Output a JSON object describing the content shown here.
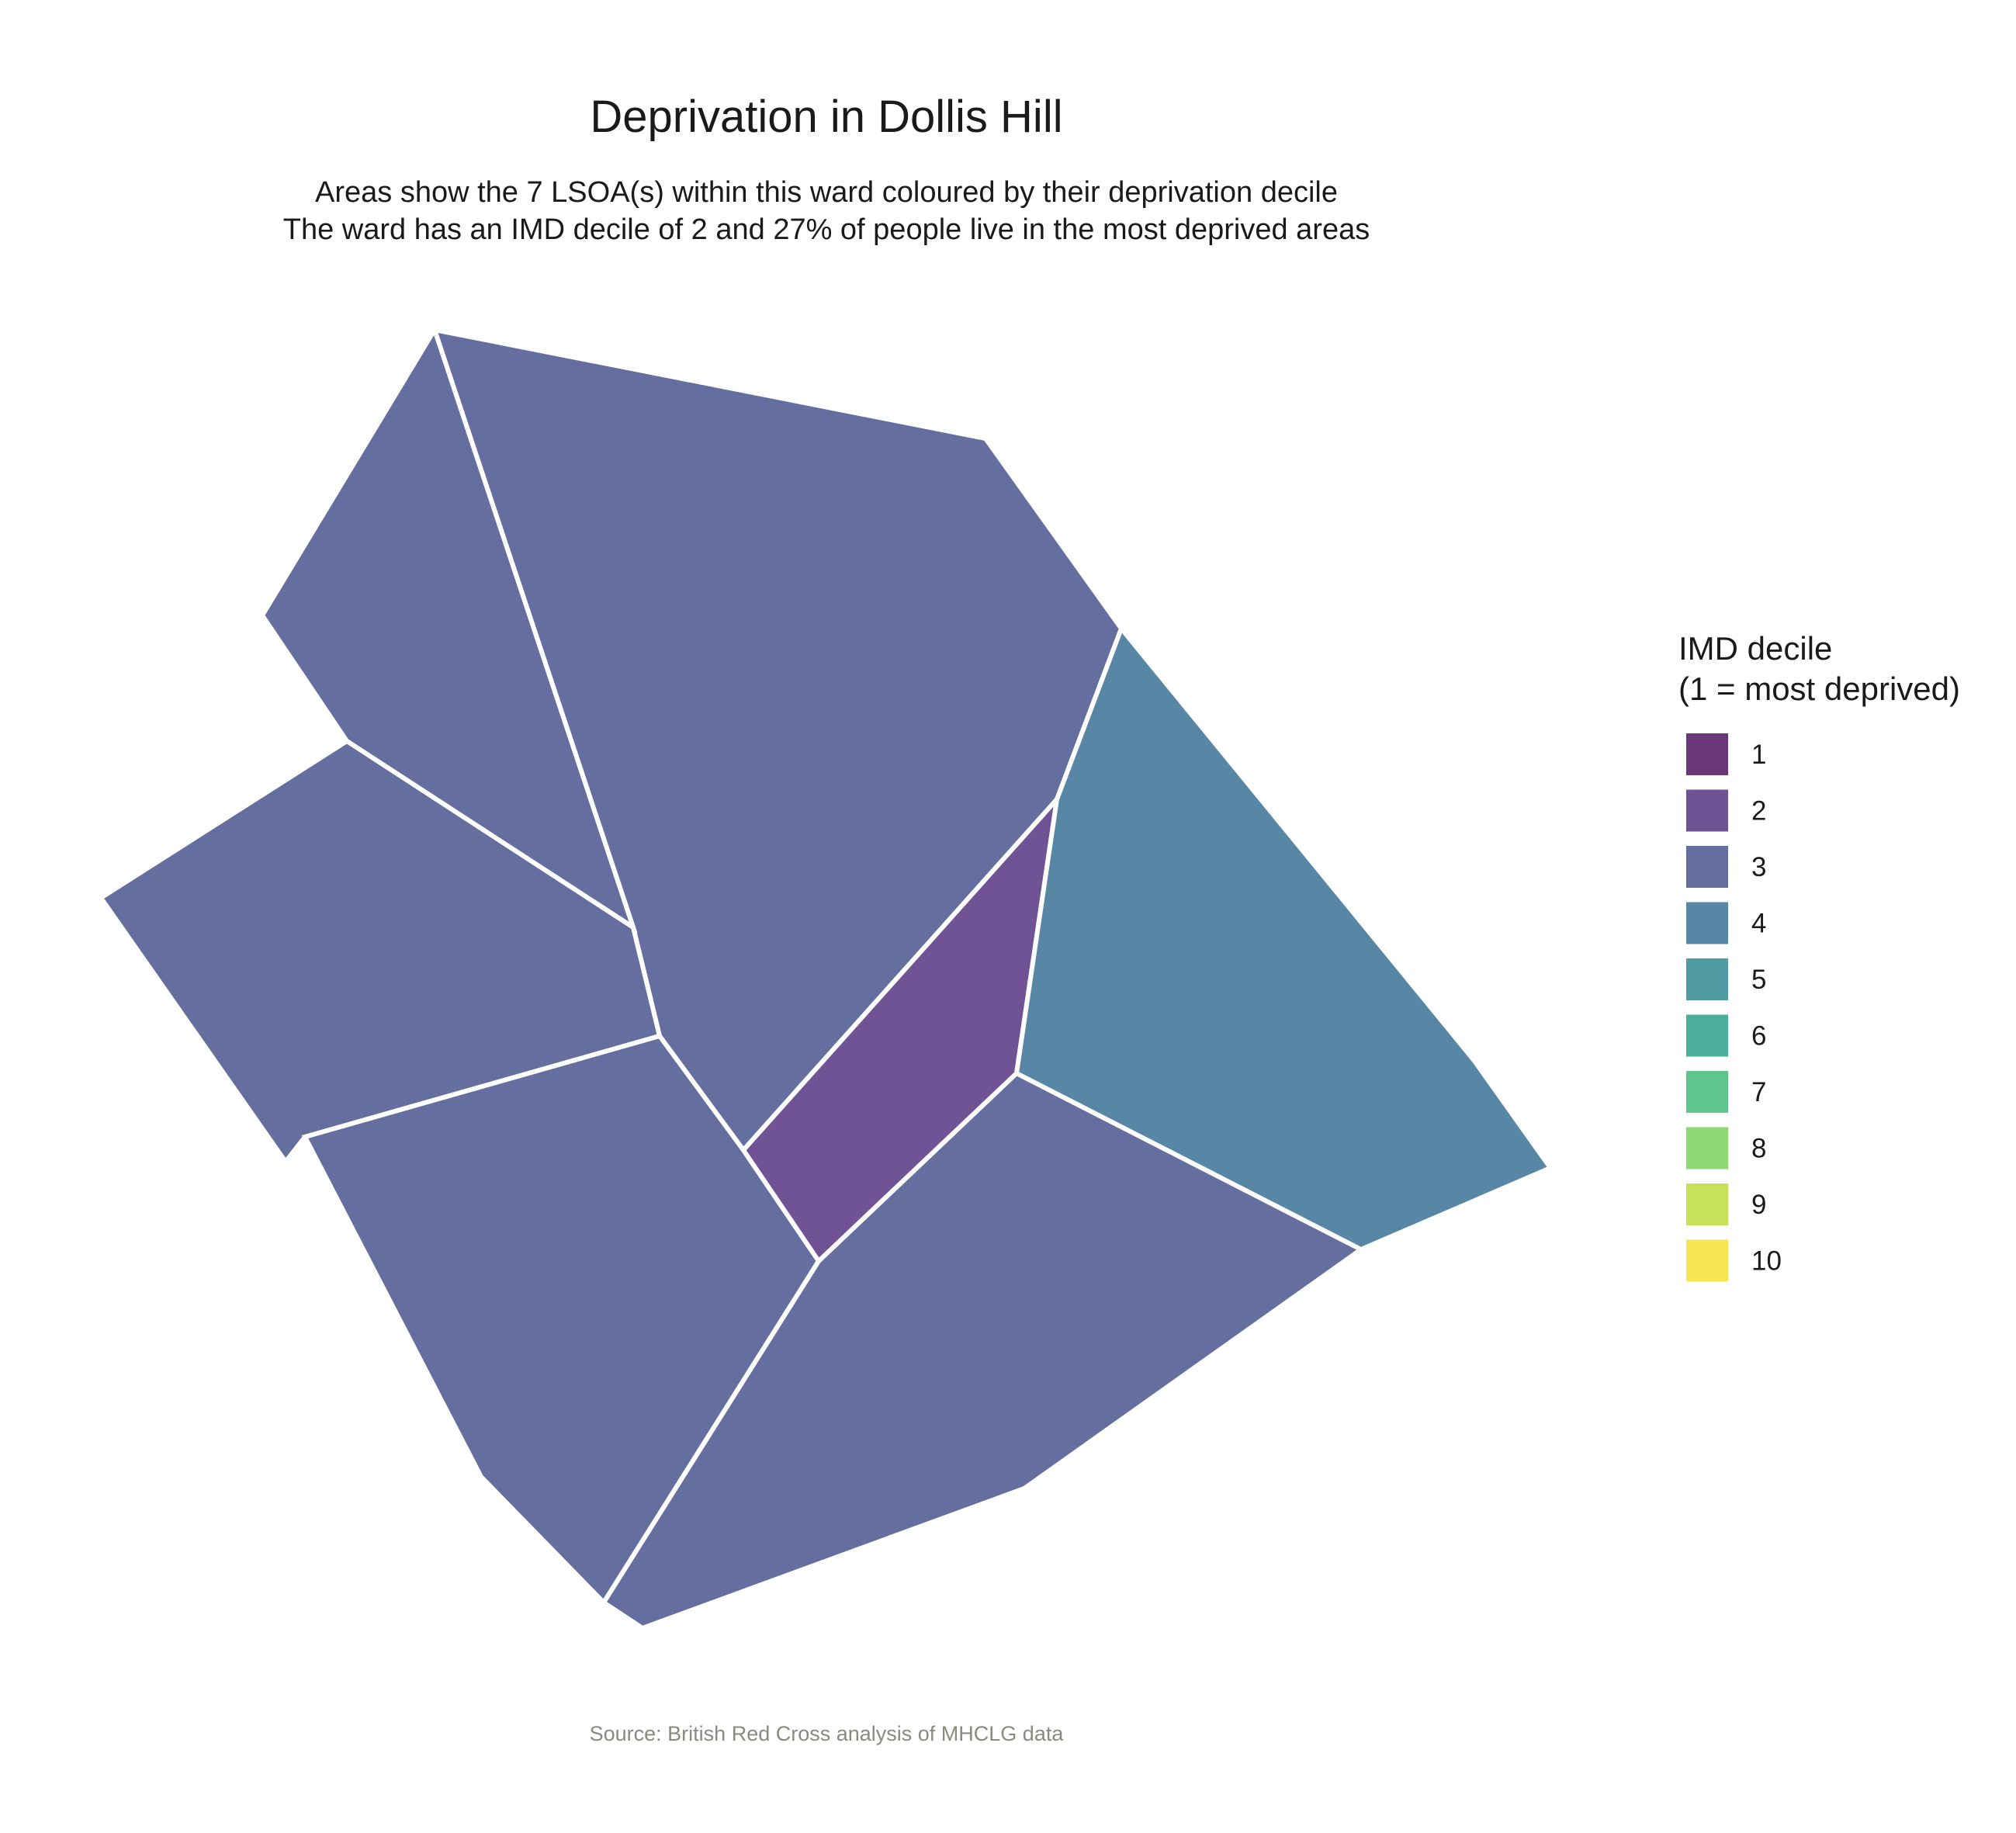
{
  "title": "Deprivation in Dollis Hill",
  "subtitle_line1": "Areas show the 7 LSOA(s) within this ward coloured by their deprivation decile",
  "subtitle_line2": "The ward has an IMD decile of 2 and 27% of people live in the most deprived areas",
  "caption": "Source: British Red Cross analysis of MHCLG data",
  "legend": {
    "title_line1": "IMD decile",
    "title_line2": "(1 = most deprived)",
    "items": [
      {
        "label": "1",
        "color": "#6a3779"
      },
      {
        "label": "2",
        "color": "#6f5394"
      },
      {
        "label": "3",
        "color": "#646e9f"
      },
      {
        "label": "4",
        "color": "#5886a5"
      },
      {
        "label": "5",
        "color": "#519ba4"
      },
      {
        "label": "6",
        "color": "#4caf9c"
      },
      {
        "label": "7",
        "color": "#5fc48e"
      },
      {
        "label": "8",
        "color": "#8dd775"
      },
      {
        "label": "9",
        "color": "#c5e25a"
      },
      {
        "label": "10",
        "color": "#f6e652"
      }
    ]
  },
  "map_data": {
    "ward": "Dollis Hill",
    "lsoa_count": 7,
    "areas": [
      {
        "id": "lsoa-north",
        "decile": 3
      },
      {
        "id": "lsoa-northwest",
        "decile": 3
      },
      {
        "id": "lsoa-west",
        "decile": 3
      },
      {
        "id": "lsoa-southwest",
        "decile": 3
      },
      {
        "id": "lsoa-south",
        "decile": 3
      },
      {
        "id": "lsoa-central",
        "decile": 2
      },
      {
        "id": "lsoa-east",
        "decile": 4
      }
    ]
  }
}
